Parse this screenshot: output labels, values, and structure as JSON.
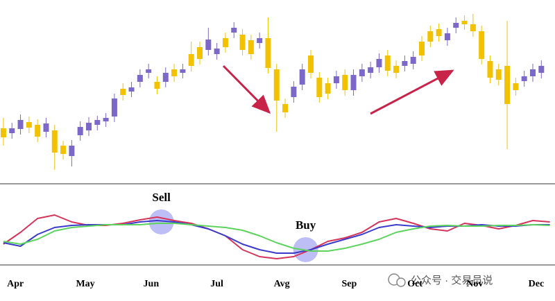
{
  "chart_data": [
    {
      "type": "candlestick",
      "up_color": "#7b68c8",
      "down_color": "#f2c200",
      "open": [
        80,
        73,
        79,
        89,
        85,
        75,
        77,
        55,
        40,
        70,
        77,
        85,
        90,
        97,
        137,
        133,
        147,
        160,
        147,
        147,
        165,
        160,
        187,
        197,
        193,
        187,
        210,
        218,
        215,
        207,
        203,
        210,
        165,
        115,
        125,
        143,
        185,
        153,
        145,
        145,
        157,
        135,
        155,
        160,
        168,
        185,
        170,
        170,
        173,
        205,
        220,
        223,
        207,
        225,
        235,
        230,
        220,
        177,
        165,
        170,
        145,
        148,
        155,
        160
      ],
      "high": [
        95,
        88,
        100,
        97,
        93,
        95,
        85,
        62,
        63,
        90,
        96,
        98,
        102,
        130,
        145,
        147,
        165,
        173,
        155,
        168,
        173,
        173,
        205,
        205,
        225,
        203,
        218,
        233,
        223,
        215,
        218,
        240,
        173,
        123,
        148,
        173,
        193,
        161,
        153,
        163,
        165,
        165,
        173,
        176,
        188,
        193,
        178,
        185,
        191,
        213,
        228,
        231,
        225,
        240,
        243,
        245,
        228,
        185,
        173,
        235,
        153,
        163,
        173,
        178
      ],
      "low": [
        55,
        65,
        71,
        73,
        60,
        67,
        20,
        35,
        25,
        62,
        69,
        77,
        82,
        89,
        120,
        125,
        139,
        152,
        129,
        139,
        147,
        152,
        162,
        172,
        185,
        179,
        189,
        210,
        185,
        179,
        195,
        159,
        75,
        95,
        117,
        135,
        152,
        117,
        122,
        137,
        127,
        127,
        147,
        152,
        160,
        155,
        152,
        162,
        165,
        177,
        197,
        205,
        199,
        217,
        222,
        212,
        172,
        145,
        142,
        50,
        127,
        140,
        147,
        152
      ],
      "close": [
        67,
        80,
        92,
        81,
        68,
        87,
        45,
        43,
        55,
        82,
        88,
        92,
        95,
        123,
        128,
        139,
        157,
        165,
        137,
        160,
        155,
        165,
        170,
        180,
        208,
        195,
        197,
        225,
        193,
        187,
        210,
        167,
        120,
        103,
        140,
        165,
        160,
        125,
        130,
        155,
        135,
        157,
        165,
        168,
        180,
        163,
        160,
        177,
        183,
        185,
        205,
        213,
        217,
        232,
        230,
        220,
        180,
        153,
        150,
        115,
        135,
        155,
        165,
        170
      ],
      "xlim": [
        -0.4,
        64.6
      ],
      "ylim": [
        0,
        265
      ]
    },
    {
      "type": "line",
      "x": [
        0,
        2,
        4,
        6,
        8,
        10,
        12,
        14,
        16,
        18,
        20,
        22,
        24,
        26,
        28,
        30,
        32,
        34,
        36,
        38,
        40,
        42,
        44,
        46,
        48,
        50,
        52,
        54,
        56,
        58,
        60,
        62,
        64
      ],
      "series": [
        {
          "color": "#d4345a",
          "values": [
            28,
            45,
            65,
            70,
            60,
            55,
            55,
            58,
            63,
            67,
            62,
            58,
            50,
            40,
            20,
            10,
            7,
            10,
            20,
            32,
            37,
            45,
            60,
            65,
            58,
            50,
            47,
            58,
            55,
            50,
            55,
            62,
            60
          ]
        },
        {
          "color": "#3a3acb",
          "values": [
            30,
            25,
            42,
            52,
            55,
            56,
            56,
            56,
            60,
            62,
            60,
            56,
            50,
            40,
            28,
            20,
            15,
            15,
            20,
            28,
            35,
            42,
            52,
            56,
            54,
            52,
            54,
            54,
            56,
            54,
            54,
            56,
            56
          ]
        },
        {
          "color": "#5cd35c",
          "values": [
            32,
            28,
            35,
            47,
            52,
            54,
            56,
            56,
            56,
            58,
            58,
            56,
            54,
            52,
            48,
            40,
            30,
            22,
            18,
            18,
            22,
            28,
            35,
            45,
            50,
            54,
            55,
            54,
            54,
            55,
            55,
            56,
            55
          ]
        }
      ],
      "annotations": [
        {
          "text": "Sell",
          "x": 18.5,
          "y": 60
        },
        {
          "text": "Buy",
          "x": 35.4,
          "y": 20
        }
      ],
      "xlim": [
        -0.4,
        64.6
      ],
      "ylim": [
        -2,
        115
      ],
      "xticks": [
        {
          "value": 1.4,
          "label": "Apr"
        },
        {
          "value": 9.6,
          "label": "May"
        },
        {
          "value": 17.3,
          "label": "Jun"
        },
        {
          "value": 25,
          "label": "Jul"
        },
        {
          "value": 32.6,
          "label": "Avg"
        },
        {
          "value": 40.5,
          "label": "Sep"
        },
        {
          "value": 48.2,
          "label": "Oct"
        },
        {
          "value": 55.2,
          "label": "Nov"
        },
        {
          "value": 62.4,
          "label": "Dec"
        }
      ]
    }
  ],
  "source": "公众号 · 交易员说"
}
